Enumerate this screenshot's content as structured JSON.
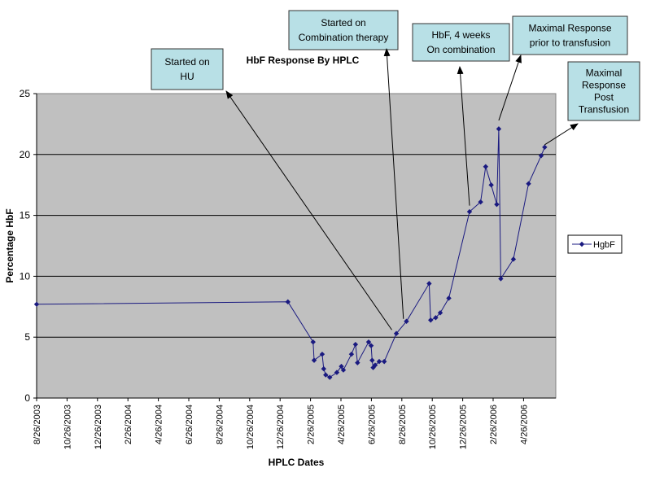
{
  "chart_data": {
    "type": "line",
    "title": "HbF Response By HPLC",
    "xlabel": "HPLC Dates",
    "ylabel": "Percentage HbF",
    "x_tick_labels": [
      "8/26/2003",
      "10/26/2003",
      "12/26/2003",
      "2/26/2004",
      "4/26/2004",
      "6/26/2004",
      "8/26/2004",
      "10/26/2004",
      "12/26/2004",
      "2/26/2005",
      "4/26/2005",
      "6/26/2005",
      "8/26/2005",
      "10/26/2005",
      "12/26/2005",
      "2/26/2006",
      "4/26/2006"
    ],
    "xlim": [
      "2003-08-26",
      "2006-06-20"
    ],
    "ylim": [
      0,
      25
    ],
    "y_ticks": [
      0,
      5,
      10,
      15,
      20,
      25
    ],
    "grid": "horizontal",
    "plot_background": "#c0c0c0",
    "legend_position": "right",
    "series": [
      {
        "name": "HgbF",
        "color": "#1a1a80",
        "marker": "diamond",
        "points": [
          [
            "2003-08-26",
            7.7
          ],
          [
            "2005-01-05",
            7.9
          ],
          [
            "2005-02-24",
            4.6
          ],
          [
            "2005-02-26",
            3.1
          ],
          [
            "2005-03-14",
            3.6
          ],
          [
            "2005-03-17",
            2.4
          ],
          [
            "2005-03-21",
            1.9
          ],
          [
            "2005-03-29",
            1.7
          ],
          [
            "2005-04-12",
            2.1
          ],
          [
            "2005-04-21",
            2.6
          ],
          [
            "2005-04-25",
            2.3
          ],
          [
            "2005-05-11",
            3.6
          ],
          [
            "2005-05-19",
            4.4
          ],
          [
            "2005-05-23",
            2.9
          ],
          [
            "2005-06-14",
            4.6
          ],
          [
            "2005-06-19",
            4.3
          ],
          [
            "2005-06-21",
            3.1
          ],
          [
            "2005-06-23",
            2.5
          ],
          [
            "2005-06-27",
            2.7
          ],
          [
            "2005-07-05",
            3.0
          ],
          [
            "2005-07-15",
            3.0
          ],
          [
            "2005-08-08",
            5.3
          ],
          [
            "2005-08-28",
            6.3
          ],
          [
            "2005-10-12",
            9.4
          ],
          [
            "2005-10-15",
            6.4
          ],
          [
            "2005-10-25",
            6.6
          ],
          [
            "2005-11-03",
            7.0
          ],
          [
            "2005-11-20",
            8.2
          ],
          [
            "2005-12-31",
            15.3
          ],
          [
            "2006-01-22",
            16.1
          ],
          [
            "2006-02-01",
            19.0
          ],
          [
            "2006-02-12",
            17.5
          ],
          [
            "2006-02-23",
            15.9
          ],
          [
            "2006-02-27",
            22.1
          ],
          [
            "2006-03-03",
            9.8
          ],
          [
            "2006-03-28",
            11.4
          ],
          [
            "2006-04-27",
            17.6
          ],
          [
            "2006-05-22",
            19.9
          ],
          [
            "2006-05-29",
            20.6
          ]
        ]
      }
    ],
    "annotations": [
      {
        "lines": [
          "Started on",
          "HU"
        ],
        "target": [
          "2005-07-30",
          5.6
        ]
      },
      {
        "lines": [
          "Started on",
          "Combination therapy"
        ],
        "target": [
          "2005-08-22",
          6.5
        ]
      },
      {
        "lines": [
          "HbF, 4 weeks",
          "On combination"
        ],
        "target": [
          "2005-12-31",
          15.8
        ]
      },
      {
        "lines": [
          "Maximal Response",
          "prior to transfusion"
        ],
        "target": [
          "2006-02-27",
          22.8
        ]
      },
      {
        "lines": [
          "Maximal",
          "Response",
          "Post",
          "Transfusion"
        ],
        "target": [
          "2006-05-29",
          20.8
        ]
      }
    ]
  }
}
